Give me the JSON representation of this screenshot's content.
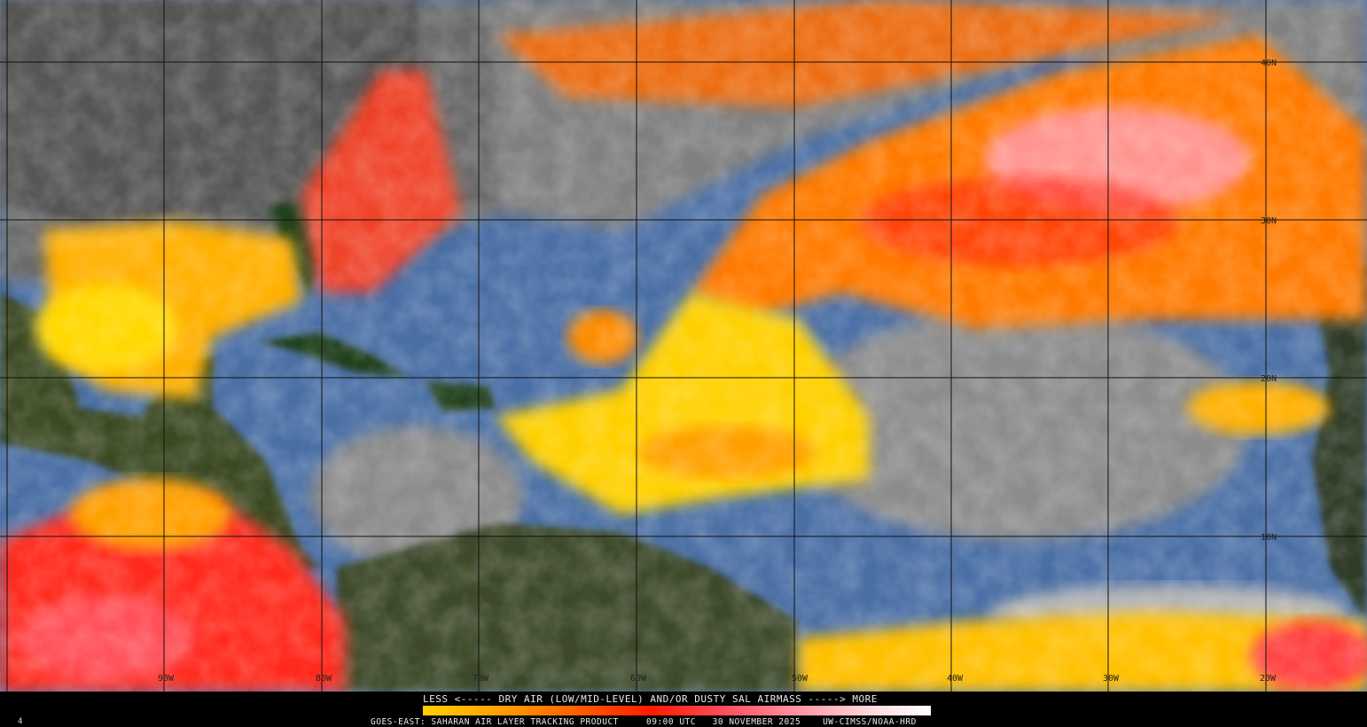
{
  "image": {
    "product": "GOES-EAST: SAHARAN AIR LAYER TRACKING PRODUCT",
    "time": "09:00 UTC",
    "date": "30 NOVEMBER 2025",
    "credit": "UW-CIMSS/NOAA-HRD",
    "corner_mark": "4"
  },
  "legend": {
    "title": "LESS <----- DRY AIR (LOW/MID-LEVEL) AND/OR DUSTY SAL AIRMASS -----> MORE",
    "colors": [
      "#ffd000",
      "#ff8c00",
      "#ff1a00",
      "#ff9aa8",
      "#ffffff"
    ]
  },
  "grid": {
    "longitude_labels": [
      "90W",
      "80W",
      "70W",
      "60W",
      "50W",
      "40W",
      "30W",
      "20W"
    ],
    "latitude_labels": [
      "40N",
      "30N",
      "20N",
      "10N"
    ]
  },
  "colors": {
    "ocean": "#4a6fa5",
    "land": "#24401a",
    "cloud": "#9a9a9a",
    "sal_low": "#ffd800",
    "sal_mid": "#ff7a00",
    "sal_high": "#ff2010",
    "sal_max": "#ff9aa8"
  }
}
